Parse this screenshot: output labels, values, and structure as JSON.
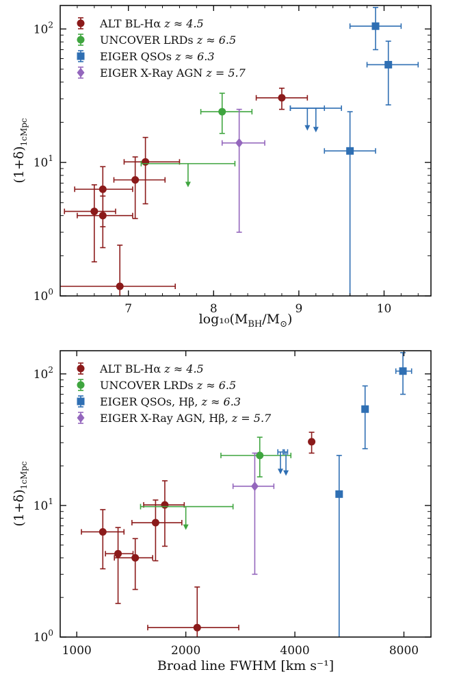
{
  "colors": {
    "alt": "#8b1a1a",
    "uncover": "#3fa53f",
    "eiger_qso": "#2f6fb3",
    "eiger_xray": "#9467bd",
    "axis": "#111111"
  },
  "chart_data": [
    {
      "type": "scatter",
      "id": "top",
      "xlabel": "log₁₀(M_BH/M_⊙)",
      "ylabel": "(1+δ)_1cMpc",
      "xscale": "linear",
      "yscale": "log",
      "xlim": [
        6.2,
        10.55
      ],
      "ylim": [
        1.0,
        150
      ],
      "xticks": [
        {
          "value": 7,
          "label": "7"
        },
        {
          "value": 8,
          "label": "8"
        },
        {
          "value": 9,
          "label": "9"
        },
        {
          "value": 10,
          "label": "10"
        }
      ],
      "yticks": [
        {
          "value": 1,
          "label": "10",
          "exp": "0"
        },
        {
          "value": 10,
          "label": "10",
          "exp": "1"
        },
        {
          "value": 100,
          "label": "10",
          "exp": "2"
        }
      ],
      "legend_position": "top-left",
      "legend": [
        {
          "series": "alt",
          "text": "ALT BL-Hα",
          "z": "z ≈ 4.5"
        },
        {
          "series": "uncover",
          "text": "UNCOVER LRDs",
          "z": "z ≈ 6.5"
        },
        {
          "series": "eiger_qso",
          "text": "EIGER QSOs",
          "z": "z ≈ 6.3"
        },
        {
          "series": "eiger_xray",
          "text": "EIGER X-Ray AGN",
          "z": "z = 5.7"
        }
      ],
      "series": [
        {
          "name": "alt",
          "marker": "circle",
          "points": [
            {
              "x": 6.9,
              "y": 1.18,
              "xerr": [
                0.85,
                0.65
              ],
              "ylo": 0.45,
              "yhi": 2.4
            },
            {
              "x": 6.6,
              "y": 4.3,
              "xerr": [
                0.35,
                0.25
              ],
              "ylo": 1.8,
              "yhi": 6.8
            },
            {
              "x": 6.7,
              "y": 4.0,
              "xerr": [
                0.3,
                0.35
              ],
              "ylo": 2.3,
              "yhi": 5.6
            },
            {
              "x": 6.7,
              "y": 6.3,
              "xerr": [
                0.33,
                0.35
              ],
              "ylo": 3.3,
              "yhi": 9.3
            },
            {
              "x": 7.08,
              "y": 7.4,
              "xerr": [
                0.25,
                0.35
              ],
              "ylo": 3.8,
              "yhi": 11.0
            },
            {
              "x": 7.2,
              "y": 10.1,
              "xerr": [
                0.25,
                0.4
              ],
              "ylo": 4.9,
              "yhi": 15.4
            },
            {
              "x": 8.8,
              "y": 30.5,
              "xerr": [
                0.3,
                0.3
              ],
              "ylo": 25.0,
              "yhi": 36.0
            }
          ]
        },
        {
          "name": "uncover",
          "marker": "circle",
          "points": [
            {
              "x": 8.1,
              "y": 24.0,
              "xerr": [
                0.25,
                0.35
              ],
              "ylo": 16.5,
              "yhi": 33.0
            }
          ],
          "limits": [
            {
              "x": 7.7,
              "y": 9.8,
              "xerr": [
                0.55,
                0.55
              ],
              "yto": 6.6
            }
          ]
        },
        {
          "name": "eiger_qso",
          "marker": "square",
          "points": [
            {
              "x": 9.9,
              "y": 105,
              "xerr": [
                0.3,
                0.3
              ],
              "ylo": 70,
              "yhi": 145
            },
            {
              "x": 10.05,
              "y": 54,
              "xerr": [
                0.25,
                0.35
              ],
              "ylo": 27,
              "yhi": 81
            },
            {
              "x": 9.6,
              "y": 12.2,
              "xerr": [
                0.3,
                0.3
              ],
              "ylo": 0.5,
              "yhi": 24.0
            }
          ],
          "limits": [
            {
              "x": 9.1,
              "y": 25.5,
              "xerr": [
                0.2,
                0.2
              ],
              "yto": 17.5
            },
            {
              "x": 9.2,
              "y": 25.5,
              "xerr": [
                0.3,
                0.3
              ],
              "yto": 17.0
            }
          ]
        },
        {
          "name": "eiger_xray",
          "marker": "diamond",
          "points": [
            {
              "x": 8.3,
              "y": 14.0,
              "xerr": [
                0.2,
                0.3
              ],
              "ylo": 3.0,
              "yhi": 25.0
            }
          ]
        }
      ]
    },
    {
      "type": "scatter",
      "id": "bottom",
      "xlabel": "Broad line FWHM [km s⁻¹]",
      "ylabel": "(1+δ)_1cMpc",
      "xscale": "log",
      "yscale": "log",
      "xlim": [
        900,
        9500
      ],
      "ylim": [
        1.0,
        150
      ],
      "xticks": [
        {
          "value": 1000,
          "label": "1000"
        },
        {
          "value": 2000,
          "label": "2000"
        },
        {
          "value": 4000,
          "label": "4000"
        },
        {
          "value": 8000,
          "label": "8000"
        }
      ],
      "yticks": [
        {
          "value": 1,
          "label": "10",
          "exp": "0"
        },
        {
          "value": 10,
          "label": "10",
          "exp": "1"
        },
        {
          "value": 100,
          "label": "10",
          "exp": "2"
        }
      ],
      "legend_position": "top-left",
      "legend": [
        {
          "series": "alt",
          "text": "ALT BL-Hα",
          "z": "z ≈ 4.5"
        },
        {
          "series": "uncover",
          "text": "UNCOVER LRDs",
          "z": "z ≈ 6.5"
        },
        {
          "series": "eiger_qso",
          "text": "EIGER QSOs, Hβ,",
          "z": "z ≈ 6.3"
        },
        {
          "series": "eiger_xray",
          "text": "EIGER X-Ray AGN, Hβ,",
          "z": "z = 5.7"
        }
      ],
      "series": [
        {
          "name": "alt",
          "marker": "circle",
          "points": [
            {
              "x": 2150,
              "y": 1.18,
              "xerr": [
                580,
                650
              ],
              "ylo": 0.45,
              "yhi": 2.4
            },
            {
              "x": 1180,
              "y": 6.3,
              "xerr": [
                150,
                170
              ],
              "ylo": 3.3,
              "yhi": 9.3
            },
            {
              "x": 1300,
              "y": 4.3,
              "xerr": [
                100,
                130
              ],
              "ylo": 1.8,
              "yhi": 6.8
            },
            {
              "x": 1450,
              "y": 4.0,
              "xerr": [
                180,
                170
              ],
              "ylo": 2.3,
              "yhi": 5.6
            },
            {
              "x": 1650,
              "y": 7.4,
              "xerr": [
                230,
                300
              ],
              "ylo": 3.8,
              "yhi": 11.0
            },
            {
              "x": 1750,
              "y": 10.1,
              "xerr": [
                220,
                230
              ],
              "ylo": 4.9,
              "yhi": 15.4
            },
            {
              "x": 4450,
              "y": 30.5,
              "xerr": [
                60,
                60
              ],
              "ylo": 25.0,
              "yhi": 36.0
            }
          ]
        },
        {
          "name": "uncover",
          "marker": "circle",
          "points": [
            {
              "x": 3200,
              "y": 24.0,
              "xerr": [
                700,
                700
              ],
              "ylo": 16.5,
              "yhi": 33.0
            }
          ],
          "limits": [
            {
              "x": 2000,
              "y": 9.8,
              "xerr": [
                500,
                700
              ],
              "yto": 6.6
            }
          ]
        },
        {
          "name": "eiger_qso",
          "marker": "square",
          "points": [
            {
              "x": 7950,
              "y": 105,
              "xerr": [
                350,
                450
              ],
              "ylo": 70,
              "yhi": 145
            },
            {
              "x": 6250,
              "y": 54,
              "xerr": [
                80,
                80
              ],
              "ylo": 27,
              "yhi": 81
            },
            {
              "x": 5300,
              "y": 12.2,
              "xerr": [
                60,
                60
              ],
              "ylo": 0.5,
              "yhi": 24.0
            }
          ],
          "limits": [
            {
              "x": 3650,
              "y": 25.5,
              "xerr": [
                60,
                60
              ],
              "yto": 17.5
            },
            {
              "x": 3780,
              "y": 25.5,
              "xerr": [
                40,
                40
              ],
              "yto": 17.0
            }
          ]
        },
        {
          "name": "eiger_xray",
          "marker": "diamond",
          "points": [
            {
              "x": 3100,
              "y": 14.0,
              "xerr": [
                400,
                400
              ],
              "ylo": 3.0,
              "yhi": 25.0
            }
          ]
        }
      ]
    }
  ]
}
